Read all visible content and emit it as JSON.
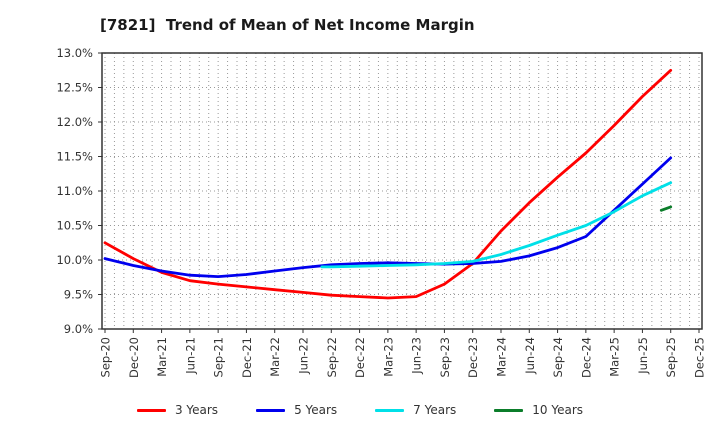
{
  "chart_data": {
    "type": "line",
    "title": "[7821]  Trend of Mean of Net Income Margin",
    "title_color": "#1a1a1a",
    "background_color": "#ffffff",
    "grid": "on",
    "gridline_color": "#999999",
    "frame_color": "#333333",
    "y_axis": {
      "unit": "%",
      "min": 9.0,
      "max": 13.0,
      "tick_step": 0.5,
      "tick_labels": [
        "13.0%",
        "12.5%",
        "12.0%",
        "11.5%",
        "11.0%",
        "10.5%",
        "10.0%",
        "9.5%",
        "9.0%"
      ]
    },
    "x_axis": {
      "start": "Sep-20",
      "end": "Dec-25",
      "minor_grid": "monthly",
      "tick_labels": [
        "Sep-20",
        "Dec-20",
        "Mar-21",
        "Jun-21",
        "Sep-21",
        "Dec-21",
        "Mar-22",
        "Jun-22",
        "Sep-22",
        "Dec-22",
        "Mar-23",
        "Jun-23",
        "Sep-23",
        "Dec-23",
        "Mar-24",
        "Jun-24",
        "Sep-24",
        "Dec-24",
        "Mar-25",
        "Jun-25",
        "Sep-25",
        "Dec-25"
      ]
    },
    "legend": {
      "position": "bottom"
    },
    "series": [
      {
        "name": "3 Years",
        "color": "#ff0000",
        "points": [
          {
            "x": "Sep-20",
            "y": 10.25
          },
          {
            "x": "Dec-20",
            "y": 10.02
          },
          {
            "x": "Mar-21",
            "y": 9.82
          },
          {
            "x": "Jun-21",
            "y": 9.7
          },
          {
            "x": "Sep-21",
            "y": 9.65
          },
          {
            "x": "Dec-21",
            "y": 9.61
          },
          {
            "x": "Mar-22",
            "y": 9.57
          },
          {
            "x": "Jun-22",
            "y": 9.53
          },
          {
            "x": "Sep-22",
            "y": 9.49
          },
          {
            "x": "Dec-22",
            "y": 9.47
          },
          {
            "x": "Mar-23",
            "y": 9.45
          },
          {
            "x": "Jun-23",
            "y": 9.47
          },
          {
            "x": "Sep-23",
            "y": 9.65
          },
          {
            "x": "Dec-23",
            "y": 9.95
          },
          {
            "x": "Mar-24",
            "y": 10.42
          },
          {
            "x": "Jun-24",
            "y": 10.83
          },
          {
            "x": "Sep-24",
            "y": 11.2
          },
          {
            "x": "Dec-24",
            "y": 11.55
          },
          {
            "x": "Mar-25",
            "y": 11.95
          },
          {
            "x": "Jun-25",
            "y": 12.37
          },
          {
            "x": "Sep-25",
            "y": 12.75
          }
        ]
      },
      {
        "name": "5 Years",
        "color": "#0000ee",
        "points": [
          {
            "x": "Sep-20",
            "y": 10.02
          },
          {
            "x": "Dec-20",
            "y": 9.92
          },
          {
            "x": "Mar-21",
            "y": 9.84
          },
          {
            "x": "Jun-21",
            "y": 9.78
          },
          {
            "x": "Sep-21",
            "y": 9.76
          },
          {
            "x": "Dec-21",
            "y": 9.79
          },
          {
            "x": "Mar-22",
            "y": 9.84
          },
          {
            "x": "Jun-22",
            "y": 9.89
          },
          {
            "x": "Sep-22",
            "y": 9.93
          },
          {
            "x": "Dec-22",
            "y": 9.95
          },
          {
            "x": "Mar-23",
            "y": 9.96
          },
          {
            "x": "Jun-23",
            "y": 9.95
          },
          {
            "x": "Sep-23",
            "y": 9.94
          },
          {
            "x": "Dec-23",
            "y": 9.95
          },
          {
            "x": "Mar-24",
            "y": 9.98
          },
          {
            "x": "Jun-24",
            "y": 10.06
          },
          {
            "x": "Sep-24",
            "y": 10.18
          },
          {
            "x": "Dec-24",
            "y": 10.34
          },
          {
            "x": "Mar-25",
            "y": 10.72
          },
          {
            "x": "Jun-25",
            "y": 11.1
          },
          {
            "x": "Sep-25",
            "y": 11.48
          }
        ]
      },
      {
        "name": "7 Years",
        "color": "#00e0e8",
        "points": [
          {
            "x": "Aug-22",
            "y": 9.9
          },
          {
            "x": "Sep-22",
            "y": 9.9
          },
          {
            "x": "Dec-22",
            "y": 9.91
          },
          {
            "x": "Mar-23",
            "y": 9.92
          },
          {
            "x": "Jun-23",
            "y": 9.93
          },
          {
            "x": "Sep-23",
            "y": 9.95
          },
          {
            "x": "Dec-23",
            "y": 9.98
          },
          {
            "x": "Mar-24",
            "y": 10.08
          },
          {
            "x": "Jun-24",
            "y": 10.21
          },
          {
            "x": "Sep-24",
            "y": 10.36
          },
          {
            "x": "Dec-24",
            "y": 10.5
          },
          {
            "x": "Mar-25",
            "y": 10.7
          },
          {
            "x": "Jun-25",
            "y": 10.93
          },
          {
            "x": "Sep-25",
            "y": 11.12
          }
        ]
      },
      {
        "name": "10 Years",
        "color": "#0b7d2a",
        "points": [
          {
            "x": "Aug-25",
            "y": 10.72
          },
          {
            "x": "Sep-25",
            "y": 10.77
          }
        ]
      }
    ]
  }
}
